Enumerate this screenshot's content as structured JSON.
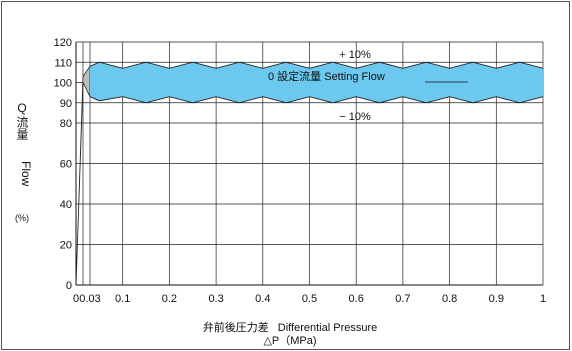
{
  "chart_data": {
    "type": "area",
    "title": "",
    "ylabel": {
      "symbol": "Q",
      "jp": "流量",
      "en": "Flow",
      "unit": "(%)"
    },
    "xlabel": {
      "jp": "弁前後圧力差",
      "en": "Differential Pressure",
      "line2": "△P（MPa)"
    },
    "xlim": [
      0,
      1
    ],
    "ylim": [
      0,
      120
    ],
    "x_ticks": [
      {
        "value": 0,
        "label": "0"
      },
      {
        "value": 0.03,
        "label": "0.03"
      },
      {
        "value": 0.1,
        "label": "0.1"
      },
      {
        "value": 0.2,
        "label": "0.2"
      },
      {
        "value": 0.3,
        "label": "0.3"
      },
      {
        "value": 0.4,
        "label": "0.4"
      },
      {
        "value": 0.5,
        "label": "0.5"
      },
      {
        "value": 0.6,
        "label": "0.6"
      },
      {
        "value": 0.7,
        "label": "0.7"
      },
      {
        "value": 0.8,
        "label": "0.8"
      },
      {
        "value": 0.9,
        "label": "0.9"
      },
      {
        "value": 1,
        "label": "1"
      }
    ],
    "y_ticks": [
      {
        "value": 0,
        "label": "0"
      },
      {
        "value": 20,
        "label": "20"
      },
      {
        "value": 40,
        "label": "40"
      },
      {
        "value": 60,
        "label": "60"
      },
      {
        "value": 80,
        "label": "80"
      },
      {
        "value": 90,
        "label": "90"
      },
      {
        "value": 100,
        "label": "100"
      },
      {
        "value": 110,
        "label": "110"
      },
      {
        "value": 120,
        "label": "120"
      }
    ],
    "extra_vlines": [
      0.015
    ],
    "grid": true,
    "band": {
      "upper": {
        "x": [
          0.03,
          0.05,
          0.1,
          0.15,
          0.2,
          0.25,
          0.3,
          0.35,
          0.4,
          0.45,
          0.5,
          0.55,
          0.6,
          0.65,
          0.7,
          0.75,
          0.8,
          0.85,
          0.9,
          0.95,
          1.0
        ],
        "y": [
          108,
          110,
          107,
          110,
          107,
          110,
          107,
          110,
          107,
          110,
          107,
          110,
          107,
          110,
          107,
          110,
          107,
          110,
          107,
          110,
          107
        ]
      },
      "lower": {
        "x": [
          0.03,
          0.05,
          0.1,
          0.15,
          0.2,
          0.25,
          0.3,
          0.35,
          0.4,
          0.45,
          0.5,
          0.55,
          0.6,
          0.65,
          0.7,
          0.75,
          0.8,
          0.85,
          0.9,
          0.95,
          1.0
        ],
        "y": [
          93,
          91,
          93,
          90,
          93,
          90,
          93,
          90,
          93,
          90,
          93,
          90,
          93,
          90,
          93,
          90,
          93,
          90,
          93,
          90,
          93
        ]
      },
      "color": "#6cc8ee"
    },
    "rise": {
      "x": [
        0,
        0.015,
        0.03
      ],
      "y_upper": [
        0,
        103,
        108
      ],
      "y_lower": [
        0,
        100,
        93
      ],
      "color": "#bdbdbd"
    },
    "annotations": {
      "plus": "+ 10%",
      "minus": "− 10%",
      "center": "0  設定流量  Setting Flow"
    }
  }
}
